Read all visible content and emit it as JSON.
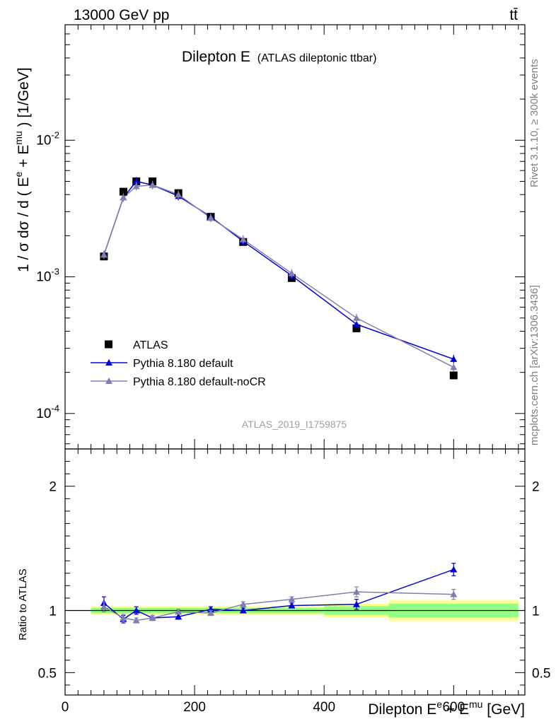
{
  "header": {
    "left": "13000 GeV pp",
    "right": "tt̄"
  },
  "side_labels": {
    "rivet": "Rivet 3.1.10, ≥ 300k events",
    "mcplots": "mcplots.cern.ch [arXiv:1306.3436]"
  },
  "chart_data": [
    {
      "type": "scatter",
      "title": "Dilepton E",
      "subtitle": "(ATLAS dileptonic ttbar)",
      "analysis_id": "ATLAS_2019_I1759875",
      "ylabel": "1 / σ dσ / d ( E^e + E^mu ) [1/GeV]",
      "yscale": "log",
      "xlim": [
        0,
        710
      ],
      "ylim": [
        5.5e-05,
        0.07
      ],
      "yticks": [
        {
          "value": 0.01,
          "label": "10^-2"
        },
        {
          "value": 0.001,
          "label": "10^-3"
        },
        {
          "value": 0.0001,
          "label": "10^-4"
        }
      ],
      "legend_position": "bottom-left",
      "x": [
        60,
        90,
        110,
        135,
        175,
        225,
        275,
        350,
        450,
        600
      ],
      "series": [
        {
          "name": "ATLAS",
          "marker": "square",
          "color": "#000000",
          "values": [
            0.00141,
            0.0042,
            0.005,
            0.005,
            0.0041,
            0.00275,
            0.0018,
            0.00098,
            0.00042,
            0.00019
          ]
        },
        {
          "name": "Pythia 8.180 default",
          "marker": "triangle",
          "color": "#0000dd",
          "values": [
            0.00145,
            0.0038,
            0.005,
            0.0047,
            0.0039,
            0.00275,
            0.00182,
            0.00102,
            0.00045,
            0.00025
          ]
        },
        {
          "name": "Pythia 8.180 default-noCR",
          "marker": "triangle",
          "color": "#8080b0",
          "values": [
            0.00145,
            0.0038,
            0.0046,
            0.0047,
            0.004,
            0.0027,
            0.00188,
            0.00106,
            0.0005,
            0.000218
          ]
        }
      ]
    },
    {
      "type": "scatter",
      "ylabel": "Ratio to ATLAS",
      "xlabel": "Dilepton E^e + E^mu [GeV]",
      "xlim": [
        0,
        710
      ],
      "ylim": [
        0.32,
        2.3
      ],
      "yticks": [
        0.5,
        1,
        2
      ],
      "xticks": [
        0,
        200,
        400,
        600
      ],
      "x": [
        60,
        90,
        110,
        135,
        175,
        225,
        275,
        350,
        450,
        600
      ],
      "series": [
        {
          "name": "Pythia 8.180 default",
          "color": "#0000dd",
          "values": [
            1.06,
            0.93,
            1.0,
            0.94,
            0.95,
            1.01,
            1.0,
            1.04,
            1.05,
            1.33
          ],
          "errors": [
            0.05,
            0.03,
            0.03,
            0.02,
            0.02,
            0.02,
            0.02,
            0.02,
            0.04,
            0.05
          ]
        },
        {
          "name": "Pythia 8.180 default-noCR",
          "color": "#8080b0",
          "values": [
            1.03,
            0.94,
            0.92,
            0.94,
            0.99,
            0.98,
            1.05,
            1.09,
            1.15,
            1.13
          ],
          "errors": [
            0.04,
            0.03,
            0.02,
            0.02,
            0.02,
            0.02,
            0.02,
            0.02,
            0.04,
            0.04
          ]
        }
      ],
      "uncertainty_bands": [
        {
          "x": [
            40,
            400
          ],
          "inner": 0.022,
          "outer": 0.035
        },
        {
          "x": [
            400,
            500
          ],
          "inner": 0.035,
          "outer": 0.055
        },
        {
          "x": [
            500,
            700
          ],
          "inner": 0.055,
          "outer": 0.085
        }
      ]
    }
  ]
}
